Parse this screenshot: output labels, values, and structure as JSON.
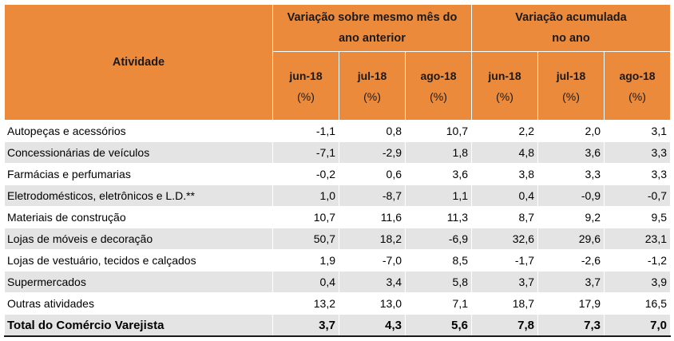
{
  "header": {
    "activity_label": "Atividade",
    "group1_line1": "Variação sobre mesmo mês do",
    "group1_line2": "ano anterior",
    "group2_line1": "Variação acumulada",
    "group2_line2": "no ano",
    "months": [
      "jun-18",
      "jul-18",
      "ago-18",
      "jun-18",
      "jul-18",
      "ago-18"
    ],
    "unit": "(%)"
  },
  "rows": [
    {
      "label": "Autopeças e acessórios",
      "values": [
        "-1,1",
        "0,8",
        "10,7",
        "2,2",
        "2,0",
        "3,1"
      ]
    },
    {
      "label": "Concessionárias de veículos",
      "values": [
        "-7,1",
        "-2,9",
        "1,8",
        "4,8",
        "3,6",
        "3,3"
      ]
    },
    {
      "label": "Farmácias e perfumarias",
      "values": [
        "-0,2",
        "0,6",
        "3,6",
        "3,8",
        "3,3",
        "3,3"
      ]
    },
    {
      "label": "Eletrodomésticos, eletrônicos e L.D.**",
      "values": [
        "1,0",
        "-8,7",
        "1,1",
        "0,4",
        "-0,9",
        "-0,7"
      ]
    },
    {
      "label": "Materiais de construção",
      "values": [
        "10,7",
        "11,6",
        "11,3",
        "8,7",
        "9,2",
        "9,5"
      ]
    },
    {
      "label": "Lojas de móveis e decoração",
      "values": [
        "50,7",
        "18,2",
        "-6,9",
        "32,6",
        "29,6",
        "23,1"
      ]
    },
    {
      "label": "Lojas de vestuário, tecidos e calçados",
      "values": [
        "1,9",
        "-7,0",
        "8,5",
        "-1,7",
        "-2,6",
        "-1,2"
      ]
    },
    {
      "label": "Supermercados",
      "values": [
        "0,4",
        "3,4",
        "5,8",
        "3,7",
        "3,7",
        "3,9"
      ]
    },
    {
      "label": "Outras atividades",
      "values": [
        "13,2",
        "13,0",
        "7,1",
        "18,7",
        "17,9",
        "16,5"
      ]
    }
  ],
  "total": {
    "label": "Total do Comércio Varejista",
    "values": [
      "3,7",
      "4,3",
      "5,6",
      "7,8",
      "7,3",
      "7,0"
    ]
  }
}
